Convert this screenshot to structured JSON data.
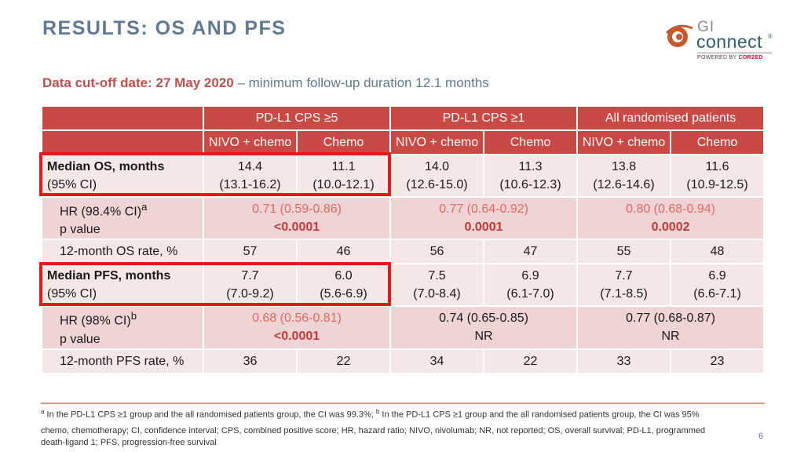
{
  "title": "RESULTS: OS AND PFS",
  "logo": {
    "gi": "GI",
    "connect": "connect",
    "reg": "®",
    "powered_prefix": "POWERED BY ",
    "powered_brand": "COR2ED"
  },
  "subtitle": {
    "strong": "Data cut-off date: 27 May 2020",
    "rest": " – minimum follow-up duration 12.1 months"
  },
  "table": {
    "groups": [
      "PD-L1 CPS ≥5",
      "PD-L1 CPS ≥1",
      "All randomised patients"
    ],
    "arms": [
      "NIVO + chemo",
      "Chemo",
      "NIVO + chemo",
      "Chemo",
      "NIVO + chemo",
      "Chemo"
    ],
    "os_median": {
      "label": "Median OS, months",
      "sublabel": "(95% CI)",
      "values": [
        {
          "v": "14.4",
          "ci": "(13.1-16.2)"
        },
        {
          "v": "11.1",
          "ci": "(10.0-12.1)"
        },
        {
          "v": "14.0",
          "ci": "(12.6-15.0)"
        },
        {
          "v": "11.3",
          "ci": "(10.6-12.3)"
        },
        {
          "v": "13.8",
          "ci": "(12.6-14.6)"
        },
        {
          "v": "11.6",
          "ci": "(10.9-12.5)"
        }
      ]
    },
    "os_hr": {
      "label": "HR (98.4% CI)",
      "sup": "a",
      "sublabel": "p value",
      "values": [
        {
          "hr": "0.71 (0.59-0.86)",
          "p": "<0.0001"
        },
        {
          "hr": "0.77 (0.64-0.92)",
          "p": "0.0001"
        },
        {
          "hr": "0.80 (0.68-0.94)",
          "p": "0.0002"
        }
      ]
    },
    "os_rate": {
      "label": "12-month OS rate, %",
      "values": [
        "57",
        "46",
        "56",
        "47",
        "55",
        "48"
      ]
    },
    "pfs_median": {
      "label": "Median PFS, months",
      "sublabel": "(95% CI)",
      "values": [
        {
          "v": "7.7",
          "ci": "(7.0-9.2)"
        },
        {
          "v": "6.0",
          "ci": "(5.6-6.9)"
        },
        {
          "v": "7.5",
          "ci": "(7.0-8.4)"
        },
        {
          "v": "6.9",
          "ci": "(6.1-7.0)"
        },
        {
          "v": "7.7",
          "ci": "(7.1-8.5)"
        },
        {
          "v": "6.9",
          "ci": "(6.6-7.1)"
        }
      ]
    },
    "pfs_hr": {
      "label": "HR (98% CI)",
      "sup": "b",
      "sublabel": "p value",
      "values": [
        {
          "hr": "0.68 (0.56-0.81)",
          "p": "<0.0001"
        },
        {
          "hr": "0.74 (0.65-0.85)",
          "p": "NR"
        },
        {
          "hr": "0.77 (0.68-0.87)",
          "p": "NR"
        }
      ]
    },
    "pfs_rate": {
      "label": "12-month PFS rate, %",
      "values": [
        "36",
        "22",
        "34",
        "22",
        "33",
        "23"
      ]
    }
  },
  "footnote": {
    "sup_a": "a",
    "text_a": " In the PD-L1 CPS ≥1 group and the all randomised patients group, the CI was 99.3%; ",
    "sup_b": "b",
    "text_b": " In the PD-L1 CPS ≥1 group and the all randomised patients group, the CI was 95%"
  },
  "abbreviations": "chemo, chemotherapy; CI, confidence interval; CPS, combined positive score; HR, hazard ratio; NIVO, nivolumab; NR, not reported; OS, overall survival; PD-L1, programmed death-ligand 1; PFS, progression-free survival",
  "page_number": "6",
  "colors": {
    "title": "#5f7a92",
    "header_bg": "#c94a45",
    "row_light": "#f6e7e7",
    "row_pink": "#eed4d4",
    "hr_text": "#e06a5f",
    "pvalue_text": "#c43a3a",
    "highlight": "#e8171c"
  }
}
